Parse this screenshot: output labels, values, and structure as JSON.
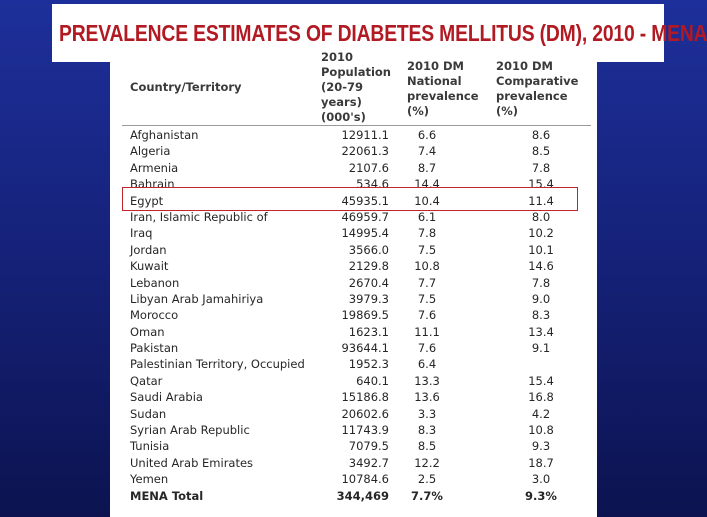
{
  "title": "PREVALENCE ESTIMATES OF DIABETES MELLITUS (DM), 2010 - MENA",
  "table": {
    "headers": {
      "country": "Country/Territory",
      "population": [
        "2010",
        "Population",
        "(20-79",
        "years)",
        "(000's)"
      ],
      "national": [
        "2010 DM",
        "National",
        "prevalence",
        "(%)"
      ],
      "comparative": [
        "2010 DM",
        "Comparative",
        "prevalence",
        "(%)"
      ]
    },
    "rows": [
      {
        "country": "Afghanistan",
        "population": "12911.1",
        "national": "6.6",
        "comparative": "8.6"
      },
      {
        "country": "Algeria",
        "population": "22061.3",
        "national": "7.4",
        "comparative": "8.5"
      },
      {
        "country": "Armenia",
        "population": "2107.6",
        "national": "8.7",
        "comparative": "7.8"
      },
      {
        "country": "Bahrain",
        "population": "534.6",
        "national": "14.4",
        "comparative": "15.4"
      },
      {
        "country": "Egypt",
        "population": "45935.1",
        "national": "10.4",
        "comparative": "11.4"
      },
      {
        "country": "Iran, Islamic Republic of",
        "population": "46959.7",
        "national": "6.1",
        "comparative": "8.0"
      },
      {
        "country": "Iraq",
        "population": "14995.4",
        "national": "7.8",
        "comparative": "10.2"
      },
      {
        "country": "Jordan",
        "population": "3566.0",
        "national": "7.5",
        "comparative": "10.1"
      },
      {
        "country": "Kuwait",
        "population": "2129.8",
        "national": "10.8",
        "comparative": "14.6"
      },
      {
        "country": "Lebanon",
        "population": "2670.4",
        "national": "7.7",
        "comparative": "7.8"
      },
      {
        "country": "Libyan Arab Jamahiriya",
        "population": "3979.3",
        "national": "7.5",
        "comparative": "9.0"
      },
      {
        "country": "Morocco",
        "population": "19869.5",
        "national": "7.6",
        "comparative": "8.3"
      },
      {
        "country": "Oman",
        "population": "1623.1",
        "national": "11.1",
        "comparative": "13.4"
      },
      {
        "country": "Pakistan",
        "population": "93644.1",
        "national": "7.6",
        "comparative": "9.1"
      },
      {
        "country": "Palestinian Territory, Occupied",
        "population": "1952.3",
        "national": "6.4",
        "comparative": ""
      },
      {
        "country": "Qatar",
        "population": "640.1",
        "national": "13.3",
        "comparative": "15.4"
      },
      {
        "country": "Saudi Arabia",
        "population": "15186.8",
        "national": "13.6",
        "comparative": "16.8"
      },
      {
        "country": "Sudan",
        "population": "20602.6",
        "national": "3.3",
        "comparative": "4.2"
      },
      {
        "country": "Syrian Arab Republic",
        "population": "11743.9",
        "national": "8.3",
        "comparative": "10.8"
      },
      {
        "country": "Tunisia",
        "population": "7079.5",
        "national": "8.5",
        "comparative": "9.3"
      },
      {
        "country": "United Arab Emirates",
        "population": "3492.7",
        "national": "12.2",
        "comparative": "18.7"
      },
      {
        "country": "Yemen",
        "population": "10784.6",
        "national": "2.5",
        "comparative": "3.0"
      }
    ],
    "total": {
      "country": "MENA Total",
      "population": "344,469",
      "national": "7.7%",
      "comparative": "9.3%"
    },
    "highlighted_country": "Egypt"
  },
  "colors": {
    "title": "#b21a23",
    "highlight_border": "#c0262d",
    "background": "#16237c"
  }
}
